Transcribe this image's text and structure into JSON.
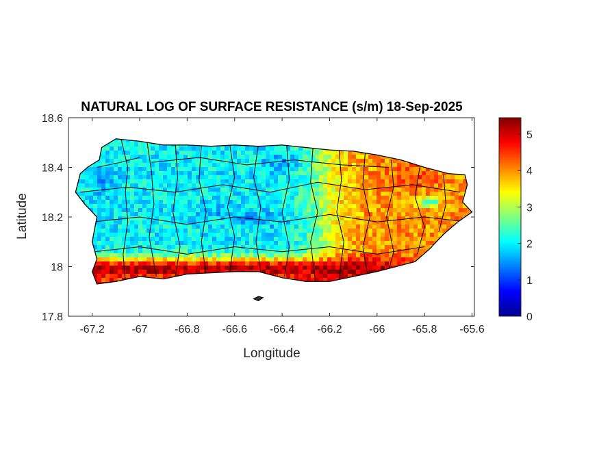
{
  "chart_data": {
    "type": "heatmap",
    "title": "NATURAL LOG OF SURFACE RESISTANCE (s/m) 18-Sep-2025",
    "xlabel": "Longitude",
    "ylabel": "Latitude",
    "xlim": [
      -67.3,
      -65.59
    ],
    "ylim": [
      17.8,
      18.6
    ],
    "x_ticks": [
      -67.2,
      -67,
      -66.8,
      -66.6,
      -66.4,
      -66.2,
      -66,
      -65.8,
      -65.6
    ],
    "x_tick_labels": [
      "-67.2",
      "-67",
      "-66.8",
      "-66.6",
      "-66.4",
      "-66.2",
      "-66",
      "-65.8",
      "-65.6"
    ],
    "y_ticks": [
      17.8,
      18,
      18.2,
      18.4,
      18.6
    ],
    "y_tick_labels": [
      "17.8",
      "18",
      "18.2",
      "18.4",
      "18.6"
    ],
    "grid": false,
    "legend": "none",
    "colormap": "jet",
    "colorbar": {
      "range": [
        0,
        5.45
      ],
      "ticks": [
        0,
        1,
        2,
        3,
        4,
        5
      ],
      "tick_labels": [
        "0",
        "1",
        "2",
        "3",
        "4",
        "5"
      ],
      "position": "right"
    },
    "region": "Puerto Rico",
    "pattern_summary": {
      "west_and_central_interior": 2.0,
      "central_valley_band_lat_18_2": 1.6,
      "south_coast_lat_17_95": 5.2,
      "east_interior": 4.0,
      "northeast_lon_minus_65_85": 4.5
    }
  }
}
